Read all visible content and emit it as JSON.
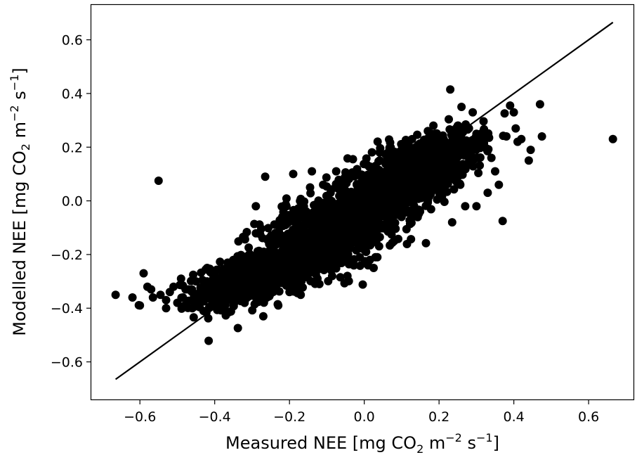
{
  "chart_data": {
    "type": "scatter",
    "title": "",
    "xlabel": {
      "prefix": "Measured NEE [mg CO",
      "sub1": "2",
      "mid1": " m",
      "sup1": "−2",
      "mid2": " s",
      "sup2": "−1",
      "suffix": "]"
    },
    "ylabel": {
      "prefix": "Modelled NEE [mg CO",
      "sub1": "2",
      "mid1": " m",
      "sup1": "−2",
      "mid2": " s",
      "sup2": "−1",
      "suffix": "]"
    },
    "xlim": [
      -0.73,
      0.72
    ],
    "ylim": [
      -0.74,
      0.73
    ],
    "xticks": [
      -0.6,
      -0.4,
      -0.2,
      0.0,
      0.2,
      0.4,
      0.6
    ],
    "xtick_labels": [
      "−0.6",
      "−0.4",
      "−0.2",
      "0.0",
      "0.2",
      "0.4",
      "0.6"
    ],
    "yticks": [
      -0.6,
      -0.4,
      -0.2,
      0.0,
      0.2,
      0.4,
      0.6
    ],
    "ytick_labels": [
      "−0.6",
      "−0.4",
      "−0.2",
      "0.0",
      "0.2",
      "0.4",
      "0.6"
    ],
    "grid": false,
    "marker_color": "#000000",
    "reference_line": {
      "x": [
        -0.665,
        0.665
      ],
      "y": [
        -0.665,
        0.665
      ],
      "color": "#000000"
    },
    "points": [
      [
        -0.665,
        -0.35
      ],
      [
        -0.62,
        -0.36
      ],
      [
        -0.6,
        -0.39
      ],
      [
        -0.59,
        -0.27
      ],
      [
        -0.58,
        -0.32
      ],
      [
        -0.57,
        -0.33
      ],
      [
        -0.565,
        -0.36
      ],
      [
        -0.55,
        0.075
      ],
      [
        -0.545,
        -0.35
      ],
      [
        -0.53,
        -0.37
      ],
      [
        -0.53,
        -0.4
      ],
      [
        -0.52,
        -0.34
      ],
      [
        -0.51,
        -0.32
      ],
      [
        -0.5,
        -0.38
      ],
      [
        -0.49,
        -0.29
      ],
      [
        -0.485,
        -0.36
      ],
      [
        -0.48,
        -0.39
      ],
      [
        -0.47,
        -0.33
      ],
      [
        -0.46,
        -0.4
      ],
      [
        -0.45,
        -0.3
      ],
      [
        -0.44,
        -0.36
      ],
      [
        -0.43,
        -0.41
      ],
      [
        -0.42,
        -0.25
      ],
      [
        -0.41,
        -0.34
      ],
      [
        -0.4,
        -0.37
      ],
      [
        -0.39,
        -0.3
      ],
      [
        -0.38,
        -0.4
      ],
      [
        -0.37,
        -0.27
      ],
      [
        -0.36,
        -0.33
      ],
      [
        -0.35,
        -0.22
      ],
      [
        -0.34,
        -0.36
      ],
      [
        -0.33,
        -0.3
      ],
      [
        -0.32,
        -0.38
      ],
      [
        -0.31,
        -0.27
      ],
      [
        -0.3,
        -0.35
      ],
      [
        -0.29,
        -0.02
      ],
      [
        -0.28,
        -0.31
      ],
      [
        -0.27,
        -0.43
      ],
      [
        -0.265,
        0.09
      ],
      [
        -0.26,
        -0.36
      ],
      [
        -0.25,
        -0.15
      ],
      [
        -0.24,
        -0.29
      ],
      [
        -0.23,
        -0.39
      ],
      [
        -0.22,
        -0.13
      ],
      [
        -0.21,
        -0.24
      ],
      [
        -0.2,
        -0.34
      ],
      [
        -0.19,
        0.1
      ],
      [
        -0.18,
        -0.2
      ],
      [
        -0.17,
        -0.35
      ],
      [
        -0.16,
        -0.06
      ],
      [
        -0.15,
        -0.27
      ],
      [
        -0.145,
        0.05
      ],
      [
        -0.14,
        0.11
      ],
      [
        -0.13,
        -0.1
      ],
      [
        -0.12,
        -0.31
      ],
      [
        -0.11,
        0.06
      ],
      [
        -0.1,
        -0.14
      ],
      [
        -0.09,
        0.03
      ],
      [
        -0.08,
        -0.21
      ],
      [
        -0.075,
        0.11
      ],
      [
        -0.07,
        -0.06
      ],
      [
        -0.06,
        0.07
      ],
      [
        -0.05,
        -0.17
      ],
      [
        -0.045,
        -0.28
      ],
      [
        -0.04,
        0.1
      ],
      [
        -0.03,
        -0.02
      ],
      [
        -0.02,
        0.06
      ],
      [
        -0.01,
        -0.12
      ],
      [
        0.0,
        0.03
      ],
      [
        0.005,
        -0.19
      ],
      [
        0.01,
        -0.24
      ],
      [
        0.015,
        -0.22
      ],
      [
        0.02,
        0.02
      ],
      [
        0.025,
        -0.25
      ],
      [
        0.03,
        0.13
      ],
      [
        0.035,
        -0.21
      ],
      [
        0.04,
        -0.03
      ],
      [
        0.045,
        -0.04
      ],
      [
        0.05,
        0.1
      ],
      [
        0.06,
        0.02
      ],
      [
        0.07,
        -0.02
      ],
      [
        0.08,
        -0.15
      ],
      [
        0.09,
        0.13
      ],
      [
        0.1,
        0.04
      ],
      [
        0.11,
        0.2
      ],
      [
        0.12,
        0.07
      ],
      [
        0.13,
        -0.01
      ],
      [
        0.14,
        0.11
      ],
      [
        0.15,
        0.19
      ],
      [
        0.16,
        0.13
      ],
      [
        0.17,
        0.26
      ],
      [
        0.18,
        0.15
      ],
      [
        0.19,
        0.25
      ],
      [
        0.2,
        0.09
      ],
      [
        0.21,
        0.22
      ],
      [
        0.22,
        0.18
      ],
      [
        0.23,
        0.415
      ],
      [
        0.235,
        -0.08
      ],
      [
        0.24,
        0.17
      ],
      [
        0.25,
        0.28
      ],
      [
        0.26,
        0.35
      ],
      [
        0.27,
        0.21
      ],
      [
        0.28,
        0.16
      ],
      [
        0.29,
        0.33
      ],
      [
        0.3,
        0.25
      ],
      [
        0.31,
        0.24
      ],
      [
        0.32,
        0.2
      ],
      [
        0.33,
        0.03
      ],
      [
        0.34,
        0.16
      ],
      [
        0.35,
        0.11
      ],
      [
        0.36,
        0.06
      ],
      [
        0.37,
        -0.075
      ],
      [
        0.38,
        0.24
      ],
      [
        0.39,
        0.355
      ],
      [
        0.4,
        0.33
      ],
      [
        0.405,
        0.27
      ],
      [
        0.41,
        0.22
      ],
      [
        0.42,
        0.23
      ],
      [
        0.44,
        0.15
      ],
      [
        0.445,
        0.19
      ],
      [
        0.47,
        0.36
      ],
      [
        0.475,
        0.24
      ],
      [
        0.665,
        0.23
      ],
      [
        0.3,
        -0.02
      ],
      [
        0.27,
        -0.02
      ],
      [
        -0.12,
        -0.1
      ],
      [
        0.03,
        -0.21
      ],
      [
        -0.26,
        -0.25
      ],
      [
        -0.11,
        -0.19
      ],
      [
        0.08,
        0.08
      ],
      [
        0.14,
        0.06
      ]
    ],
    "clusters": [
      {
        "x_mean": -0.3,
        "y_mean": -0.29,
        "x_sd": 0.075,
        "y_sd": 0.045,
        "n": 650
      },
      {
        "x_mean": -0.12,
        "y_mean": -0.14,
        "x_sd": 0.085,
        "y_sd": 0.075,
        "n": 700
      },
      {
        "x_mean": 0.03,
        "y_mean": 0.01,
        "x_sd": 0.065,
        "y_sd": 0.075,
        "n": 550
      },
      {
        "x_mean": 0.14,
        "y_mean": 0.13,
        "x_sd": 0.065,
        "y_sd": 0.055,
        "n": 550
      },
      {
        "x_mean": 0.22,
        "y_mean": 0.19,
        "x_sd": 0.05,
        "y_sd": 0.045,
        "n": 220
      }
    ],
    "trend": {
      "slope": 0.83,
      "intercept": -0.03
    }
  }
}
